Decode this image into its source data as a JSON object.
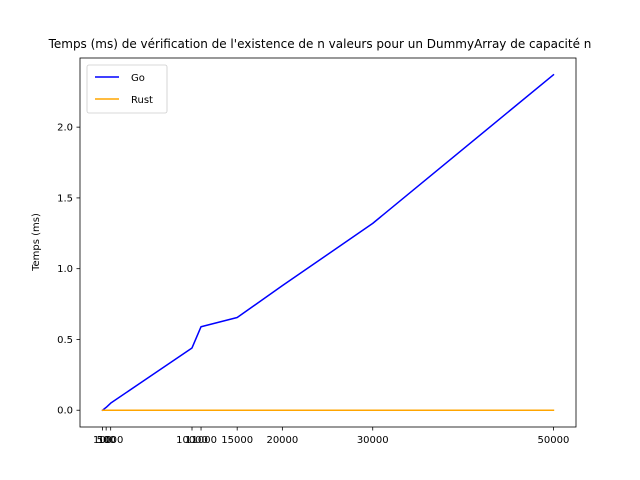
{
  "chart_data": {
    "type": "line",
    "title": "Temps (ms) de vérification de l'existence de n valeurs pour un DummyArray de capacité n",
    "xlabel": "",
    "ylabel": "Temps (ms)",
    "x": [
      100,
      500,
      1000,
      10000,
      11000,
      15000,
      20000,
      30000,
      50000
    ],
    "x_tick_labels": [
      "100",
      "500",
      "1000",
      "10000",
      "11000",
      "15000",
      "20000",
      "30000",
      "50000"
    ],
    "xlim": [
      -2395,
      52495
    ],
    "y_ticks": [
      0.0,
      0.5,
      1.0,
      1.5,
      2.0
    ],
    "y_tick_labels": [
      "0.0",
      "0.5",
      "1.0",
      "1.5",
      "2.0"
    ],
    "ylim": [
      -0.1185,
      2.4885
    ],
    "grid": false,
    "legend": "upper left",
    "series": [
      {
        "name": "Go",
        "color": "#0000ff",
        "values": [
          0.0,
          0.02,
          0.05,
          0.44,
          0.59,
          0.655,
          0.88,
          1.32,
          2.37
        ]
      },
      {
        "name": "Rust",
        "color": "#ffa500",
        "values": [
          0.0,
          0.0,
          0.0,
          0.0,
          0.0,
          0.0,
          0.0,
          0.0,
          0.0
        ]
      }
    ]
  }
}
